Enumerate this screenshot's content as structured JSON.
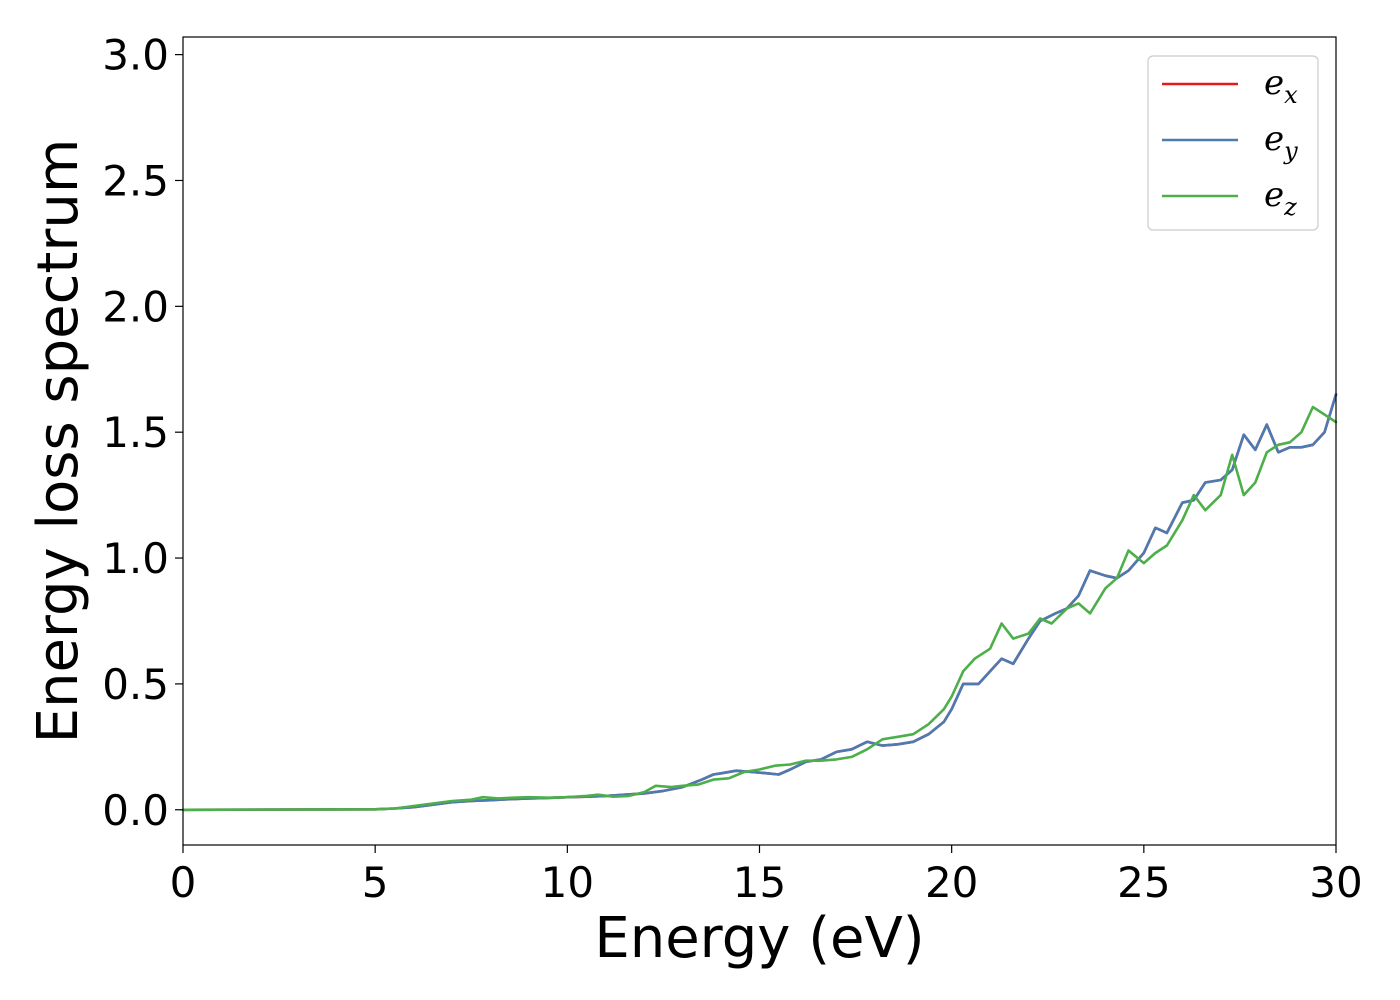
{
  "chart_data": {
    "type": "line",
    "title": "",
    "xlabel": "Energy (eV)",
    "ylabel": "Energy loss spectrum",
    "xlim": [
      0,
      30
    ],
    "ylim": [
      -0.14,
      3.07
    ],
    "xticks": [
      0,
      5,
      10,
      15,
      20,
      25,
      30
    ],
    "xtick_labels": [
      "0",
      "5",
      "10",
      "15",
      "20",
      "25",
      "30"
    ],
    "yticks": [
      0,
      0.5,
      1.0,
      1.5,
      2.0,
      2.5,
      3.0
    ],
    "ytick_labels": [
      "0.0",
      "0.5",
      "1.0",
      "1.5",
      "2.0",
      "2.5",
      "3.0"
    ],
    "grid": false,
    "legend_position": "top-right",
    "series": [
      {
        "name": "e_x",
        "legend_base": "e",
        "legend_sub": "x",
        "color": "#e41a1c",
        "x": [
          0,
          5,
          5.5,
          6,
          6.5,
          7,
          7.5,
          8,
          8.5,
          9,
          9.5,
          10,
          10.5,
          11,
          11.5,
          12,
          12.5,
          13,
          13.5,
          13.8,
          14,
          14.4,
          14.8,
          15.2,
          15.5,
          15.8,
          16.2,
          16.6,
          17,
          17.4,
          17.8,
          18.2,
          18.6,
          19,
          19.4,
          19.8,
          20,
          20.3,
          20.7,
          21,
          21.3,
          21.6,
          22,
          22.3,
          22.7,
          23,
          23.3,
          23.6,
          24,
          24.3,
          24.6,
          25,
          25.3,
          25.6,
          26,
          26.3,
          26.6,
          27,
          27.3,
          27.6,
          27.9,
          28.2,
          28.5,
          28.8,
          29.1,
          29.4,
          29.7,
          30
        ],
        "y": [
          0,
          0.002,
          0.005,
          0.01,
          0.02,
          0.03,
          0.035,
          0.038,
          0.042,
          0.045,
          0.047,
          0.05,
          0.052,
          0.055,
          0.06,
          0.065,
          0.075,
          0.09,
          0.12,
          0.14,
          0.145,
          0.155,
          0.15,
          0.145,
          0.14,
          0.16,
          0.19,
          0.2,
          0.23,
          0.24,
          0.27,
          0.255,
          0.26,
          0.27,
          0.3,
          0.35,
          0.4,
          0.5,
          0.5,
          0.55,
          0.6,
          0.58,
          0.68,
          0.75,
          0.78,
          0.8,
          0.85,
          0.95,
          0.93,
          0.92,
          0.95,
          1.02,
          1.12,
          1.1,
          1.22,
          1.23,
          1.3,
          1.31,
          1.35,
          1.49,
          1.43,
          1.53,
          1.42,
          1.44,
          1.44,
          1.45,
          1.5,
          1.65
        ]
      },
      {
        "name": "e_y",
        "legend_base": "e",
        "legend_sub": "y",
        "color": "#4a7bb3",
        "x": [
          0,
          5,
          5.5,
          6,
          6.5,
          7,
          7.5,
          8,
          8.5,
          9,
          9.5,
          10,
          10.5,
          11,
          11.5,
          12,
          12.5,
          13,
          13.5,
          13.8,
          14,
          14.4,
          14.8,
          15.2,
          15.5,
          15.8,
          16.2,
          16.6,
          17,
          17.4,
          17.8,
          18.2,
          18.6,
          19,
          19.4,
          19.8,
          20,
          20.3,
          20.7,
          21,
          21.3,
          21.6,
          22,
          22.3,
          22.7,
          23,
          23.3,
          23.6,
          24,
          24.3,
          24.6,
          25,
          25.3,
          25.6,
          26,
          26.3,
          26.6,
          27,
          27.3,
          27.6,
          27.9,
          28.2,
          28.5,
          28.8,
          29.1,
          29.4,
          29.7,
          30
        ],
        "y": [
          0,
          0.002,
          0.005,
          0.01,
          0.02,
          0.03,
          0.035,
          0.038,
          0.042,
          0.045,
          0.047,
          0.05,
          0.052,
          0.055,
          0.06,
          0.065,
          0.075,
          0.09,
          0.12,
          0.14,
          0.145,
          0.155,
          0.15,
          0.145,
          0.14,
          0.16,
          0.19,
          0.2,
          0.23,
          0.24,
          0.27,
          0.255,
          0.26,
          0.27,
          0.3,
          0.35,
          0.4,
          0.5,
          0.5,
          0.55,
          0.6,
          0.58,
          0.68,
          0.75,
          0.78,
          0.8,
          0.85,
          0.95,
          0.93,
          0.92,
          0.95,
          1.02,
          1.12,
          1.1,
          1.22,
          1.23,
          1.3,
          1.31,
          1.35,
          1.49,
          1.43,
          1.53,
          1.42,
          1.44,
          1.44,
          1.45,
          1.5,
          1.65
        ]
      },
      {
        "name": "e_z",
        "legend_base": "e",
        "legend_sub": "z",
        "color": "#4daf4a",
        "x": [
          0,
          5,
          5.5,
          6,
          6.5,
          7,
          7.5,
          7.8,
          8.2,
          8.6,
          9,
          9.5,
          10,
          10.5,
          10.8,
          11.2,
          11.6,
          12,
          12.3,
          12.7,
          13,
          13.4,
          13.8,
          14.2,
          14.6,
          15,
          15.4,
          15.8,
          16.2,
          16.6,
          17,
          17.4,
          17.8,
          18.2,
          18.6,
          19,
          19.4,
          19.8,
          20,
          20.3,
          20.6,
          21,
          21.3,
          21.6,
          22,
          22.3,
          22.6,
          23,
          23.3,
          23.6,
          24,
          24.3,
          24.6,
          25,
          25.3,
          25.6,
          26,
          26.3,
          26.6,
          27,
          27.3,
          27.6,
          27.9,
          28.2,
          28.5,
          28.8,
          29.1,
          29.4,
          29.7,
          30
        ],
        "y": [
          0,
          0.002,
          0.005,
          0.015,
          0.025,
          0.035,
          0.04,
          0.05,
          0.045,
          0.048,
          0.05,
          0.048,
          0.05,
          0.055,
          0.06,
          0.052,
          0.055,
          0.07,
          0.095,
          0.09,
          0.095,
          0.1,
          0.12,
          0.125,
          0.15,
          0.16,
          0.175,
          0.18,
          0.195,
          0.195,
          0.2,
          0.21,
          0.24,
          0.28,
          0.29,
          0.3,
          0.34,
          0.4,
          0.45,
          0.55,
          0.6,
          0.64,
          0.74,
          0.68,
          0.7,
          0.76,
          0.74,
          0.8,
          0.82,
          0.78,
          0.88,
          0.92,
          1.03,
          0.98,
          1.02,
          1.05,
          1.15,
          1.25,
          1.19,
          1.25,
          1.41,
          1.25,
          1.3,
          1.42,
          1.45,
          1.46,
          1.5,
          1.6,
          1.57,
          1.54
        ]
      }
    ]
  }
}
